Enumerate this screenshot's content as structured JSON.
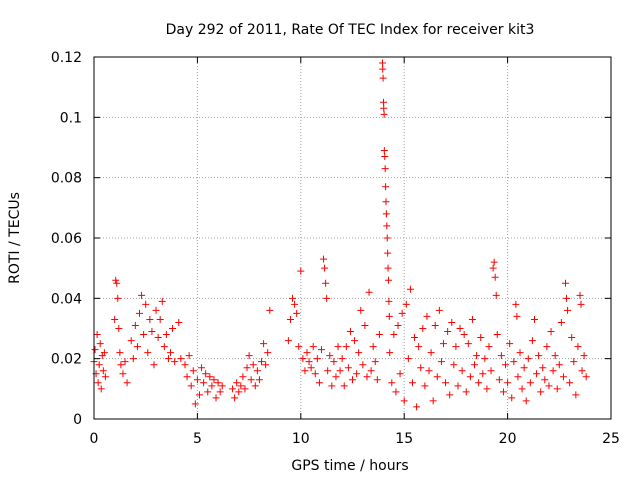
{
  "chart_data": {
    "type": "scatter",
    "title": "Day 292 of 2011, Rate Of TEC Index for receiver kit3",
    "xlabel": "GPS time / hours",
    "ylabel": "ROTI / TECUs",
    "xlim": [
      0,
      25
    ],
    "ylim": [
      0,
      0.12
    ],
    "grid": true,
    "marker": "+",
    "marker_color": "#ff0000",
    "x_ticks": [
      0,
      5,
      10,
      15,
      20,
      25
    ],
    "y_ticks": [
      0,
      0.02,
      0.04,
      0.06,
      0.08,
      0.1,
      0.12
    ],
    "x_tick_labels": [
      "0",
      "5",
      "10",
      "15",
      "20",
      "25"
    ],
    "y_tick_labels": [
      "0",
      "0.02",
      "0.04",
      "0.06",
      "0.08",
      "0.1",
      "0.12"
    ],
    "series": [
      {
        "name": "ROTI",
        "points": [
          [
            0.0,
            0.019
          ],
          [
            0.05,
            0.023
          ],
          [
            0.1,
            0.015
          ],
          [
            0.15,
            0.028
          ],
          [
            0.2,
            0.012
          ],
          [
            0.25,
            0.018
          ],
          [
            0.3,
            0.025
          ],
          [
            0.35,
            0.01
          ],
          [
            0.4,
            0.021
          ],
          [
            0.45,
            0.016
          ],
          [
            0.5,
            0.022
          ],
          [
            0.55,
            0.014
          ],
          [
            1.0,
            0.033
          ],
          [
            1.05,
            0.046
          ],
          [
            1.1,
            0.045
          ],
          [
            1.15,
            0.04
          ],
          [
            1.2,
            0.03
          ],
          [
            1.25,
            0.022
          ],
          [
            1.3,
            0.018
          ],
          [
            1.4,
            0.015
          ],
          [
            1.5,
            0.019
          ],
          [
            1.6,
            0.012
          ],
          [
            1.8,
            0.026
          ],
          [
            1.9,
            0.02
          ],
          [
            2.0,
            0.031
          ],
          [
            2.1,
            0.024
          ],
          [
            2.2,
            0.035
          ],
          [
            2.3,
            0.041
          ],
          [
            2.4,
            0.028
          ],
          [
            2.5,
            0.038
          ],
          [
            2.6,
            0.022
          ],
          [
            2.7,
            0.033
          ],
          [
            2.8,
            0.029
          ],
          [
            2.9,
            0.018
          ],
          [
            3.0,
            0.036
          ],
          [
            3.1,
            0.027
          ],
          [
            3.2,
            0.033
          ],
          [
            3.3,
            0.039
          ],
          [
            3.4,
            0.024
          ],
          [
            3.5,
            0.028
          ],
          [
            3.6,
            0.02
          ],
          [
            3.7,
            0.022
          ],
          [
            3.8,
            0.03
          ],
          [
            3.9,
            0.019
          ],
          [
            4.1,
            0.032
          ],
          [
            4.2,
            0.02
          ],
          [
            4.4,
            0.018
          ],
          [
            4.5,
            0.014
          ],
          [
            4.6,
            0.021
          ],
          [
            4.7,
            0.011
          ],
          [
            4.8,
            0.016
          ],
          [
            4.9,
            0.005
          ],
          [
            5.0,
            0.013
          ],
          [
            5.1,
            0.008
          ],
          [
            5.2,
            0.017
          ],
          [
            5.3,
            0.012
          ],
          [
            5.4,
            0.015
          ],
          [
            5.5,
            0.009
          ],
          [
            5.6,
            0.014
          ],
          [
            5.7,
            0.011
          ],
          [
            5.8,
            0.013
          ],
          [
            5.9,
            0.007
          ],
          [
            6.0,
            0.012
          ],
          [
            6.1,
            0.009
          ],
          [
            6.2,
            0.011
          ],
          [
            6.7,
            0.01
          ],
          [
            6.8,
            0.007
          ],
          [
            6.9,
            0.012
          ],
          [
            7.0,
            0.009
          ],
          [
            7.1,
            0.011
          ],
          [
            7.2,
            0.014
          ],
          [
            7.3,
            0.01
          ],
          [
            7.4,
            0.017
          ],
          [
            7.5,
            0.021
          ],
          [
            7.6,
            0.013
          ],
          [
            7.7,
            0.018
          ],
          [
            7.8,
            0.011
          ],
          [
            7.9,
            0.016
          ],
          [
            8.0,
            0.013
          ],
          [
            8.1,
            0.019
          ],
          [
            8.2,
            0.025
          ],
          [
            8.3,
            0.018
          ],
          [
            8.4,
            0.022
          ],
          [
            8.5,
            0.036
          ],
          [
            9.4,
            0.026
          ],
          [
            9.5,
            0.033
          ],
          [
            9.6,
            0.04
          ],
          [
            9.7,
            0.038
          ],
          [
            9.8,
            0.035
          ],
          [
            9.9,
            0.024
          ],
          [
            10.0,
            0.049
          ],
          [
            10.1,
            0.02
          ],
          [
            10.2,
            0.016
          ],
          [
            10.3,
            0.022
          ],
          [
            10.4,
            0.019
          ],
          [
            10.5,
            0.017
          ],
          [
            10.6,
            0.024
          ],
          [
            10.7,
            0.015
          ],
          [
            10.8,
            0.02
          ],
          [
            10.9,
            0.012
          ],
          [
            11.0,
            0.023
          ],
          [
            11.1,
            0.053
          ],
          [
            11.15,
            0.05
          ],
          [
            11.2,
            0.045
          ],
          [
            11.25,
            0.04
          ],
          [
            11.3,
            0.016
          ],
          [
            11.4,
            0.021
          ],
          [
            11.5,
            0.011
          ],
          [
            11.6,
            0.019
          ],
          [
            11.7,
            0.014
          ],
          [
            11.8,
            0.024
          ],
          [
            11.9,
            0.016
          ],
          [
            12.0,
            0.02
          ],
          [
            12.1,
            0.011
          ],
          [
            12.2,
            0.024
          ],
          [
            12.3,
            0.017
          ],
          [
            12.4,
            0.029
          ],
          [
            12.5,
            0.013
          ],
          [
            12.6,
            0.026
          ],
          [
            12.7,
            0.015
          ],
          [
            12.8,
            0.022
          ],
          [
            12.9,
            0.036
          ],
          [
            13.0,
            0.018
          ],
          [
            13.1,
            0.031
          ],
          [
            13.2,
            0.014
          ],
          [
            13.3,
            0.042
          ],
          [
            13.4,
            0.016
          ],
          [
            13.5,
            0.024
          ],
          [
            13.6,
            0.019
          ],
          [
            13.7,
            0.013
          ],
          [
            13.8,
            0.028
          ],
          [
            13.95,
            0.118
          ],
          [
            13.96,
            0.116
          ],
          [
            13.98,
            0.113
          ],
          [
            14.0,
            0.105
          ],
          [
            14.01,
            0.103
          ],
          [
            14.03,
            0.101
          ],
          [
            14.04,
            0.089
          ],
          [
            14.06,
            0.087
          ],
          [
            14.08,
            0.083
          ],
          [
            14.1,
            0.077
          ],
          [
            14.12,
            0.072
          ],
          [
            14.14,
            0.068
          ],
          [
            14.16,
            0.064
          ],
          [
            14.18,
            0.06
          ],
          [
            14.2,
            0.055
          ],
          [
            14.22,
            0.05
          ],
          [
            14.24,
            0.046
          ],
          [
            14.26,
            0.039
          ],
          [
            14.28,
            0.034
          ],
          [
            14.3,
            0.022
          ],
          [
            14.4,
            0.012
          ],
          [
            14.5,
            0.028
          ],
          [
            14.6,
            0.009
          ],
          [
            14.7,
            0.031
          ],
          [
            14.8,
            0.015
          ],
          [
            14.9,
            0.035
          ],
          [
            15.0,
            0.006
          ],
          [
            15.1,
            0.038
          ],
          [
            15.2,
            0.02
          ],
          [
            15.3,
            0.043
          ],
          [
            15.4,
            0.012
          ],
          [
            15.5,
            0.027
          ],
          [
            15.6,
            0.004
          ],
          [
            15.7,
            0.024
          ],
          [
            15.8,
            0.017
          ],
          [
            15.9,
            0.03
          ],
          [
            16.0,
            0.011
          ],
          [
            16.1,
            0.034
          ],
          [
            16.2,
            0.016
          ],
          [
            16.3,
            0.022
          ],
          [
            16.4,
            0.006
          ],
          [
            16.5,
            0.031
          ],
          [
            16.6,
            0.014
          ],
          [
            16.7,
            0.036
          ],
          [
            16.8,
            0.019
          ],
          [
            16.9,
            0.025
          ],
          [
            17.0,
            0.012
          ],
          [
            17.1,
            0.029
          ],
          [
            17.2,
            0.008
          ],
          [
            17.3,
            0.032
          ],
          [
            17.4,
            0.018
          ],
          [
            17.5,
            0.024
          ],
          [
            17.6,
            0.011
          ],
          [
            17.7,
            0.03
          ],
          [
            17.8,
            0.016
          ],
          [
            17.9,
            0.028
          ],
          [
            18.0,
            0.009
          ],
          [
            18.1,
            0.025
          ],
          [
            18.2,
            0.014
          ],
          [
            18.3,
            0.033
          ],
          [
            18.4,
            0.018
          ],
          [
            18.5,
            0.021
          ],
          [
            18.6,
            0.012
          ],
          [
            18.7,
            0.027
          ],
          [
            18.8,
            0.015
          ],
          [
            18.9,
            0.02
          ],
          [
            19.0,
            0.01
          ],
          [
            19.1,
            0.024
          ],
          [
            19.2,
            0.016
          ],
          [
            19.3,
            0.05
          ],
          [
            19.35,
            0.052
          ],
          [
            19.4,
            0.047
          ],
          [
            19.45,
            0.041
          ],
          [
            19.5,
            0.028
          ],
          [
            19.6,
            0.013
          ],
          [
            19.7,
            0.021
          ],
          [
            19.8,
            0.009
          ],
          [
            19.9,
            0.018
          ],
          [
            20.0,
            0.012
          ],
          [
            20.1,
            0.025
          ],
          [
            20.2,
            0.007
          ],
          [
            20.3,
            0.019
          ],
          [
            20.4,
            0.038
          ],
          [
            20.45,
            0.034
          ],
          [
            20.5,
            0.014
          ],
          [
            20.6,
            0.022
          ],
          [
            20.7,
            0.01
          ],
          [
            20.8,
            0.017
          ],
          [
            20.9,
            0.006
          ],
          [
            21.0,
            0.02
          ],
          [
            21.1,
            0.012
          ],
          [
            21.2,
            0.026
          ],
          [
            21.3,
            0.033
          ],
          [
            21.4,
            0.015
          ],
          [
            21.5,
            0.021
          ],
          [
            21.6,
            0.009
          ],
          [
            21.7,
            0.017
          ],
          [
            21.8,
            0.013
          ],
          [
            21.9,
            0.024
          ],
          [
            22.0,
            0.011
          ],
          [
            22.1,
            0.029
          ],
          [
            22.2,
            0.016
          ],
          [
            22.3,
            0.021
          ],
          [
            22.4,
            0.01
          ],
          [
            22.5,
            0.018
          ],
          [
            22.6,
            0.032
          ],
          [
            22.7,
            0.014
          ],
          [
            22.8,
            0.045
          ],
          [
            22.85,
            0.04
          ],
          [
            22.9,
            0.036
          ],
          [
            23.0,
            0.012
          ],
          [
            23.1,
            0.027
          ],
          [
            23.2,
            0.019
          ],
          [
            23.3,
            0.008
          ],
          [
            23.4,
            0.024
          ],
          [
            23.5,
            0.041
          ],
          [
            23.55,
            0.038
          ],
          [
            23.6,
            0.016
          ],
          [
            23.7,
            0.021
          ],
          [
            23.8,
            0.014
          ]
        ]
      }
    ]
  }
}
